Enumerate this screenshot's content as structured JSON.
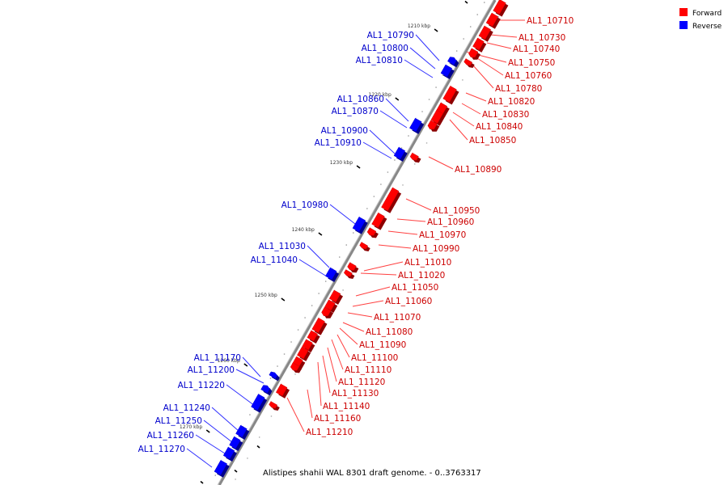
{
  "caption": "Alistipes shahii WAL 8301 draft genome. - 0..3763317",
  "legend": [
    {
      "label": "Forward",
      "color": "#ff0000"
    },
    {
      "label": "Reverse",
      "color": "#0000ff"
    }
  ],
  "colors": {
    "forward": "#ff0000",
    "reverse": "#0000ff",
    "backbone": "#888888"
  },
  "ticks": [
    "1210 kbp",
    "1220 kbp",
    "1230 kbp",
    "1240 kbp",
    "1250 kbp",
    "1260 kbp",
    "1270 kbp"
  ],
  "forward_genes": [
    "AL1_10710",
    "AL1_10730",
    "AL1_10740",
    "AL1_10750",
    "AL1_10760",
    "AL1_10780",
    "AL1_10820",
    "AL1_10830",
    "AL1_10840",
    "AL1_10850",
    "AL1_10890",
    "AL1_10950",
    "AL1_10960",
    "AL1_10970",
    "AL1_10990",
    "AL1_11010",
    "AL1_11020",
    "AL1_11050",
    "AL1_11060",
    "AL1_11070",
    "AL1_11080",
    "AL1_11090",
    "AL1_11100",
    "AL1_11110",
    "AL1_11120",
    "AL1_11130",
    "AL1_11140",
    "AL1_11160",
    "AL1_11210"
  ],
  "reverse_genes": [
    "AL1_10790",
    "AL1_10800",
    "AL1_10810",
    "AL1_10860",
    "AL1_10870",
    "AL1_10900",
    "AL1_10910",
    "AL1_10980",
    "AL1_11030",
    "AL1_11040",
    "AL1_11170",
    "AL1_11200",
    "AL1_11220",
    "AL1_11240",
    "AL1_11250",
    "AL1_11260",
    "AL1_11270"
  ]
}
